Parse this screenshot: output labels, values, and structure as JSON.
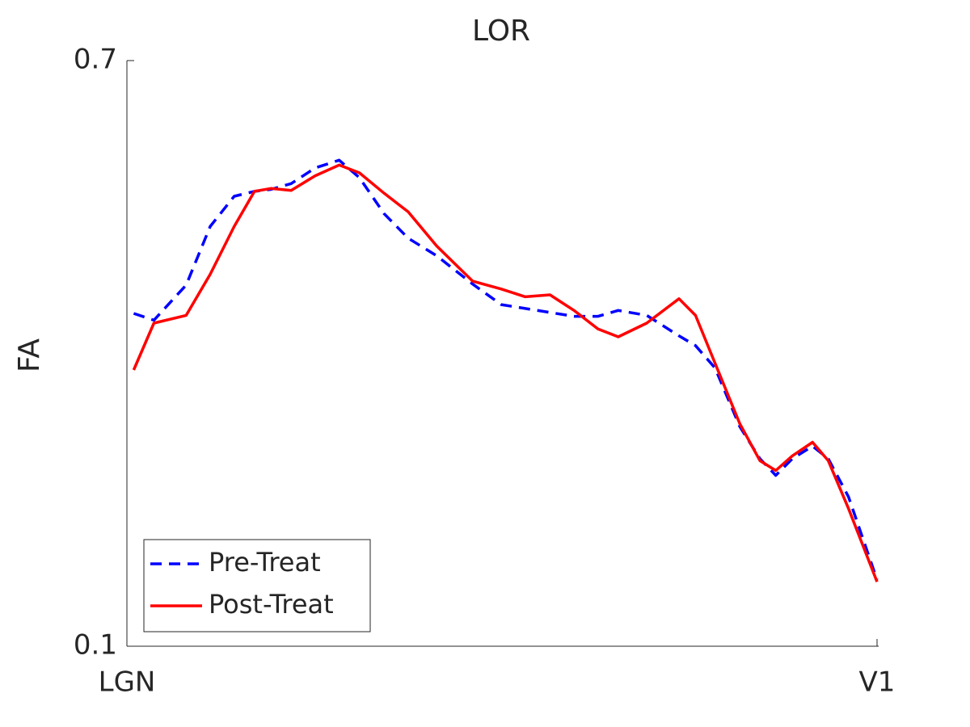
{
  "chart_data": {
    "type": "line",
    "title": "LOR",
    "y_label": "FA",
    "x": [
      0.9,
      3.6,
      7.9,
      11.1,
      14.3,
      17.0,
      19.2,
      21.9,
      25.1,
      28.3,
      31.0,
      34.3,
      37.5,
      41.3,
      46.1,
      49.9,
      53.1,
      56.4,
      59.6,
      62.8,
      65.5,
      69.3,
      73.6,
      75.8,
      78.4,
      81.7,
      84.4,
      86.5,
      88.7,
      91.4,
      93.5,
      96.2,
      100
    ],
    "series": [
      {
        "name": "Pre-Treat",
        "color": "#0000ff",
        "line_style": "dashed",
        "values": [
          0.441,
          0.434,
          0.47,
          0.53,
          0.561,
          0.566,
          0.568,
          0.574,
          0.59,
          0.598,
          0.58,
          0.543,
          0.518,
          0.5,
          0.471,
          0.45,
          0.446,
          0.442,
          0.438,
          0.438,
          0.444,
          0.439,
          0.418,
          0.408,
          0.385,
          0.325,
          0.292,
          0.275,
          0.292,
          0.305,
          0.292,
          0.253,
          0.168
        ]
      },
      {
        "name": "Post-Treat",
        "color": "#ff0000",
        "line_style": "solid",
        "values": [
          0.383,
          0.431,
          0.439,
          0.481,
          0.53,
          0.566,
          0.569,
          0.567,
          0.582,
          0.593,
          0.585,
          0.564,
          0.545,
          0.51,
          0.474,
          0.466,
          0.458,
          0.46,
          0.444,
          0.425,
          0.417,
          0.431,
          0.456,
          0.439,
          0.39,
          0.328,
          0.29,
          0.28,
          0.295,
          0.309,
          0.29,
          0.241,
          0.166
        ]
      }
    ],
    "xlim": [
      0,
      100
    ],
    "xticks": [
      {
        "value": 0,
        "label": "LGN"
      },
      {
        "value": 100,
        "label": "V1"
      }
    ],
    "ylim": [
      0.1,
      0.7
    ],
    "yticks": [
      0.1,
      0.7
    ],
    "grid": false,
    "legend": "southwest"
  }
}
